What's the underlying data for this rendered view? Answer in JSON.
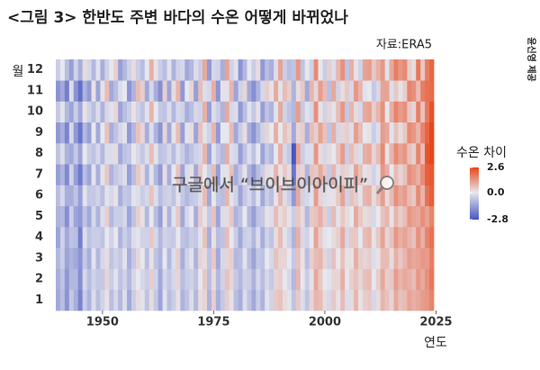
{
  "chart_data": {
    "type": "heatmap",
    "title": "<그림 3> 한반도 주변 바다의 수온 어떻게 바뀌었나",
    "source": "자료:ERA5",
    "credit": "윤신영 제공",
    "watermark": "구글에서 “브이브이아이피”",
    "xlabel": "연도",
    "ylabel": "월",
    "colorbar_title": "수온 차이",
    "colors": [
      "#4656c0",
      "#e7e7ee",
      "#e8461a"
    ],
    "zlim": [
      -2.8,
      2.6
    ],
    "zticks": [
      2.6,
      {
        "value": 0,
        "label": "0.0"
      },
      -2.8
    ],
    "xlim": [
      1939.5,
      2024.5
    ],
    "xticks": [
      1950,
      1975,
      2000,
      2025
    ],
    "x": [
      1940,
      1941,
      1942,
      1943,
      1944,
      1945,
      1946,
      1947,
      1948,
      1949,
      1950,
      1951,
      1952,
      1953,
      1954,
      1955,
      1956,
      1957,
      1958,
      1959,
      1960,
      1961,
      1962,
      1963,
      1964,
      1965,
      1966,
      1967,
      1968,
      1969,
      1970,
      1971,
      1972,
      1973,
      1974,
      1975,
      1976,
      1977,
      1978,
      1979,
      1980,
      1981,
      1982,
      1983,
      1984,
      1985,
      1986,
      1987,
      1988,
      1989,
      1990,
      1991,
      1992,
      1993,
      1994,
      1995,
      1996,
      1997,
      1998,
      1999,
      2000,
      2001,
      2002,
      2003,
      2004,
      2005,
      2006,
      2007,
      2008,
      2009,
      2010,
      2011,
      2012,
      2013,
      2014,
      2015,
      2016,
      2017,
      2018,
      2019,
      2020,
      2021,
      2022,
      2023,
      2024
    ],
    "y": [
      "1",
      "2",
      "3",
      "4",
      "5",
      "6",
      "7",
      "8",
      "9",
      "10",
      "11",
      "12"
    ],
    "z": [
      [
        -1.2,
        -0.8,
        -1.6,
        -0.6,
        -1.1,
        -1.9,
        -0.5,
        -1.0,
        -0.2,
        -0.8,
        -0.4,
        0.1,
        -0.8,
        -0.3,
        -0.9,
        -0.2,
        -1.2,
        -0.5,
        0.2,
        -0.1,
        -0.7,
        0.2,
        -0.6,
        -1.3,
        -0.1,
        -0.8,
        -0.5,
        0.1,
        -1.0,
        -0.7,
        -0.2,
        -0.9,
        0.2,
        0.3,
        -1.0,
        0.4,
        -1.1,
        -0.6,
        0.4,
        0.1,
        -0.8,
        -1.1,
        -0.2,
        -0.7,
        -1.2,
        -0.5,
        -1.0,
        -0.1,
        -0.4,
        0.5,
        0.6,
        0.2,
        -0.1,
        -0.7,
        0.5,
        -0.2,
        -0.7,
        0.3,
        0.8,
        0.7,
        0.2,
        -0.3,
        0.5,
        0.1,
        0.7,
        -0.2,
        0.2,
        0.8,
        0.1,
        0.4,
        0.5,
        -0.3,
        0.2,
        0.8,
        0.6,
        0.3,
        1.0,
        0.6,
        0.7,
        1.1,
        0.9,
        1.0,
        1.2,
        1.3,
        1.6
      ],
      [
        -1.1,
        -0.7,
        -1.5,
        -0.9,
        -0.9,
        -1.7,
        -0.3,
        -0.8,
        -0.4,
        -0.6,
        -0.6,
        0.3,
        -0.5,
        -0.1,
        -0.7,
        -0.4,
        -0.9,
        -0.3,
        0.0,
        -0.3,
        -0.5,
        0.4,
        -0.4,
        -1.2,
        -0.3,
        -0.6,
        -0.3,
        0.3,
        -0.8,
        -0.5,
        -0.4,
        -0.7,
        0.0,
        0.5,
        -0.8,
        0.2,
        -0.9,
        -0.4,
        0.6,
        0.3,
        -0.6,
        -0.9,
        -0.4,
        -0.5,
        -1.0,
        -0.3,
        -0.8,
        -0.3,
        -0.6,
        0.3,
        0.4,
        0.0,
        -0.3,
        -0.9,
        0.8,
        0.0,
        -0.5,
        0.1,
        1.0,
        0.5,
        0.0,
        -0.1,
        0.3,
        0.3,
        0.9,
        0.0,
        0.4,
        0.6,
        0.3,
        0.6,
        0.7,
        0.0,
        0.4,
        1.0,
        0.4,
        0.5,
        1.2,
        0.8,
        1.0,
        0.9,
        0.7,
        1.3,
        1.0,
        1.4,
        1.8
      ],
      [
        -0.9,
        -0.5,
        -1.3,
        -1.0,
        -1.2,
        -1.6,
        -0.6,
        -1.1,
        -0.1,
        -0.9,
        -0.3,
        0.2,
        -0.7,
        -0.4,
        -0.6,
        -0.1,
        -1.1,
        -0.6,
        0.3,
        0.0,
        -0.8,
        0.1,
        -0.7,
        -1.0,
        0.0,
        -0.9,
        -0.2,
        0.4,
        -1.1,
        -0.4,
        -0.1,
        -1.0,
        0.3,
        0.2,
        -0.7,
        0.5,
        -1.2,
        -0.3,
        0.3,
        0.4,
        -0.9,
        -0.8,
        -0.1,
        -0.8,
        -1.3,
        -0.6,
        -0.7,
        0.0,
        -0.3,
        0.6,
        0.3,
        0.3,
        0.0,
        -0.6,
        0.6,
        0.1,
        -0.8,
        0.4,
        0.7,
        0.8,
        0.3,
        -0.4,
        0.6,
        0.0,
        0.6,
        0.1,
        0.1,
        0.9,
        0.4,
        0.3,
        0.4,
        -0.2,
        0.1,
        0.7,
        0.7,
        0.2,
        0.9,
        0.5,
        0.8,
        1.2,
        1.0,
        1.1,
        1.3,
        1.2,
        1.7
      ],
      [
        -1.3,
        -0.4,
        -1.2,
        -0.7,
        -0.8,
        -2.0,
        -0.2,
        -0.7,
        -0.5,
        -0.5,
        -0.7,
        0.0,
        -0.4,
        0.0,
        -1.0,
        -0.5,
        -0.8,
        -0.2,
        -0.1,
        -0.4,
        -0.4,
        0.5,
        -0.3,
        -0.9,
        -0.4,
        -0.5,
        -0.6,
        0.0,
        -0.7,
        -0.8,
        -0.5,
        -0.6,
        -0.1,
        0.6,
        -1.1,
        0.1,
        -0.8,
        -0.7,
        0.7,
        0.0,
        -0.5,
        -1.2,
        -0.5,
        -0.4,
        -0.9,
        -0.2,
        -1.1,
        -0.4,
        -0.7,
        0.2,
        0.7,
        -0.1,
        -0.4,
        -1.0,
        0.9,
        -0.3,
        -0.4,
        0.0,
        1.1,
        0.4,
        -0.1,
        0.0,
        0.2,
        0.4,
        1.0,
        -0.3,
        0.5,
        0.5,
        0.0,
        0.7,
        0.8,
        0.1,
        0.5,
        1.1,
        0.3,
        0.6,
        1.3,
        0.9,
        1.1,
        0.8,
        0.6,
        1.4,
        0.9,
        1.6,
        1.9
      ],
      [
        -1.0,
        -0.9,
        -1.7,
        -0.5,
        -1.3,
        -1.5,
        -0.7,
        -1.2,
        -0.3,
        -1.0,
        -0.2,
        0.4,
        -0.9,
        -0.5,
        -0.5,
        -0.3,
        -1.3,
        -0.7,
        0.4,
        0.1,
        -0.9,
        0.0,
        -0.8,
        -1.4,
        0.1,
        -1.0,
        -0.1,
        0.5,
        -1.2,
        -0.3,
        0.0,
        -1.1,
        0.4,
        0.1,
        -0.6,
        0.6,
        -1.3,
        -0.2,
        0.2,
        0.5,
        -1.0,
        -0.7,
        0.0,
        -0.9,
        -1.4,
        -0.7,
        -0.6,
        0.1,
        -0.2,
        0.7,
        0.2,
        0.4,
        0.1,
        -0.5,
        0.5,
        0.2,
        -0.9,
        0.5,
        0.6,
        0.9,
        0.4,
        -0.5,
        0.7,
        -0.1,
        0.5,
        0.2,
        0.0,
        1.0,
        0.5,
        0.2,
        0.3,
        -0.3,
        0.0,
        0.6,
        0.8,
        0.1,
        0.8,
        0.4,
        0.7,
        1.3,
        1.1,
        1.0,
        1.4,
        1.1,
        1.6
      ],
      [
        -0.8,
        -0.3,
        -1.1,
        -1.1,
        -0.7,
        -1.4,
        -0.1,
        -0.6,
        -0.6,
        -0.4,
        -0.8,
        -0.1,
        -0.3,
        0.1,
        -1.1,
        -0.6,
        -0.7,
        -0.1,
        -0.2,
        -0.5,
        -0.3,
        0.6,
        -0.2,
        -0.8,
        -0.5,
        -0.4,
        -0.7,
        -0.1,
        -0.6,
        -0.9,
        -0.6,
        -0.5,
        -0.2,
        0.7,
        -1.2,
        0.0,
        -0.7,
        -0.8,
        0.8,
        -0.1,
        -0.4,
        -1.3,
        -0.6,
        -0.3,
        -0.8,
        -0.1,
        -1.2,
        -0.5,
        -0.8,
        0.1,
        0.8,
        -0.2,
        -0.5,
        -1.5,
        1.0,
        -0.4,
        -0.3,
        -0.1,
        1.2,
        0.3,
        -0.2,
        0.1,
        0.1,
        0.5,
        1.1,
        -0.4,
        0.6,
        0.4,
        -0.1,
        0.8,
        0.9,
        0.2,
        0.6,
        1.2,
        0.2,
        0.7,
        1.4,
        1.0,
        1.2,
        0.7,
        0.5,
        1.5,
        0.8,
        1.9,
        2.2
      ],
      [
        -1.4,
        -1.0,
        -1.8,
        -0.4,
        -1.4,
        -2.1,
        -0.8,
        -1.3,
        -0.1,
        -1.1,
        -0.1,
        0.5,
        -1.0,
        -0.6,
        -0.4,
        -0.2,
        -1.4,
        -0.8,
        0.5,
        0.2,
        -1.0,
        -0.1,
        -0.9,
        -1.5,
        0.2,
        -1.1,
        0.0,
        0.6,
        -1.3,
        -0.2,
        0.1,
        -1.2,
        0.5,
        0.0,
        -0.5,
        0.7,
        -1.4,
        -0.1,
        0.1,
        0.6,
        -1.1,
        -0.6,
        0.1,
        -1.0,
        -1.5,
        -0.8,
        -0.5,
        0.2,
        -0.1,
        0.8,
        0.1,
        0.5,
        0.2,
        -2.2,
        0.4,
        0.3,
        -1.0,
        0.6,
        0.5,
        1.0,
        0.5,
        -0.6,
        0.8,
        -0.2,
        0.4,
        0.3,
        -0.1,
        1.1,
        0.6,
        0.1,
        0.2,
        -0.4,
        -0.1,
        1.3,
        0.9,
        0.0,
        0.7,
        0.3,
        0.6,
        1.4,
        1.2,
        0.9,
        1.5,
        2.2,
        2.3
      ],
      [
        -0.7,
        -0.2,
        -1.0,
        -1.2,
        -0.6,
        -1.3,
        0.0,
        -0.5,
        -0.7,
        -0.3,
        -0.9,
        -0.2,
        -0.2,
        0.2,
        -1.2,
        -0.7,
        -0.6,
        0.0,
        -0.3,
        -0.6,
        -0.2,
        0.7,
        -0.1,
        -0.7,
        -0.6,
        -0.3,
        -0.8,
        -0.2,
        -0.5,
        -1.0,
        -0.7,
        -0.4,
        -0.3,
        0.8,
        -1.3,
        -0.1,
        -0.6,
        -0.9,
        0.9,
        -0.2,
        -0.3,
        -1.4,
        -0.7,
        -0.2,
        -0.7,
        0.0,
        -1.3,
        -0.6,
        -0.9,
        0.0,
        0.9,
        -0.3,
        -0.6,
        -2.8,
        1.1,
        -0.5,
        -0.2,
        -0.2,
        1.3,
        0.2,
        -0.3,
        0.2,
        0.0,
        0.6,
        1.2,
        -0.5,
        0.7,
        0.3,
        -0.2,
        0.9,
        1.0,
        0.3,
        0.7,
        1.5,
        0.1,
        0.8,
        1.5,
        1.1,
        1.3,
        0.6,
        0.4,
        1.6,
        0.7,
        2.4,
        2.6
      ],
      [
        -1.5,
        -1.1,
        -1.9,
        -0.3,
        -1.5,
        -2.2,
        -0.9,
        -1.4,
        0.0,
        -1.2,
        0.0,
        0.6,
        -1.1,
        -0.7,
        -0.3,
        -0.1,
        -1.5,
        -0.9,
        0.6,
        0.3,
        -1.1,
        -0.2,
        -1.0,
        -1.6,
        0.3,
        -1.2,
        0.1,
        0.7,
        -1.4,
        -0.1,
        0.2,
        -1.3,
        0.6,
        -0.1,
        -0.4,
        0.8,
        -1.5,
        0.0,
        0.0,
        0.7,
        -1.2,
        -0.5,
        0.2,
        -1.1,
        -1.6,
        -0.9,
        -0.4,
        0.3,
        0.0,
        0.9,
        0.0,
        0.6,
        0.3,
        -1.2,
        0.3,
        0.4,
        -1.1,
        0.7,
        0.4,
        1.1,
        0.6,
        -0.7,
        0.9,
        -0.3,
        0.3,
        0.4,
        -0.2,
        1.2,
        0.7,
        0.0,
        0.1,
        -0.5,
        -0.2,
        1.2,
        1.0,
        -0.1,
        0.6,
        0.2,
        0.5,
        1.5,
        1.3,
        0.8,
        1.6,
        2.1,
        2.6
      ],
      [
        -0.6,
        -0.1,
        -0.9,
        -1.3,
        -0.5,
        -1.2,
        0.1,
        -0.4,
        -0.8,
        -0.2,
        -1.0,
        -0.3,
        -0.1,
        0.3,
        -1.3,
        -0.8,
        -0.5,
        0.1,
        -0.4,
        -0.7,
        -0.1,
        0.8,
        0.0,
        -0.6,
        -0.7,
        -0.2,
        -0.9,
        -0.3,
        -0.4,
        -1.1,
        -0.8,
        -0.3,
        -0.4,
        0.9,
        -1.4,
        -0.2,
        -0.5,
        -1.0,
        1.0,
        -0.3,
        -0.2,
        -1.5,
        -0.8,
        -0.1,
        -0.6,
        0.1,
        -1.4,
        -0.7,
        -1.0,
        -0.1,
        1.0,
        -0.4,
        -0.7,
        -0.9,
        1.2,
        -0.6,
        -0.1,
        -0.3,
        1.4,
        0.1,
        -0.4,
        0.3,
        -0.1,
        0.7,
        1.3,
        -0.6,
        0.8,
        0.2,
        -0.3,
        1.0,
        1.1,
        0.4,
        0.8,
        1.4,
        0.0,
        0.9,
        1.6,
        1.2,
        1.4,
        0.5,
        0.3,
        1.7,
        0.6,
        1.8,
        2.4
      ],
      [
        -1.6,
        -1.2,
        -2.0,
        -0.2,
        -1.6,
        -2.3,
        -1.0,
        -1.5,
        0.1,
        -1.3,
        0.1,
        0.7,
        -1.2,
        -0.8,
        -0.2,
        0.0,
        -1.6,
        -1.0,
        0.7,
        0.4,
        -1.2,
        -0.3,
        -1.1,
        -1.7,
        0.4,
        -1.3,
        0.2,
        0.8,
        -1.5,
        0.0,
        0.3,
        -1.4,
        0.7,
        -0.2,
        -0.3,
        0.9,
        -1.6,
        0.1,
        -0.1,
        0.8,
        -1.3,
        -0.4,
        0.3,
        -1.2,
        -1.7,
        -1.0,
        -0.3,
        0.4,
        0.1,
        1.0,
        -0.1,
        0.7,
        0.4,
        -1.0,
        0.2,
        0.5,
        -1.2,
        0.8,
        0.3,
        1.2,
        0.7,
        -0.8,
        1.0,
        -0.4,
        0.2,
        0.5,
        -0.3,
        1.3,
        0.8,
        -0.1,
        0.0,
        -0.6,
        -0.3,
        1.1,
        1.1,
        -0.2,
        0.5,
        0.1,
        0.4,
        1.6,
        1.4,
        0.7,
        1.7,
        1.9,
        2.0
      ],
      [
        -0.5,
        0.0,
        -0.8,
        -1.4,
        -0.4,
        -1.1,
        0.2,
        -0.3,
        -0.9,
        -0.1,
        -1.1,
        -0.4,
        0.0,
        0.4,
        -1.4,
        -0.9,
        -0.4,
        0.2,
        -0.5,
        -0.8,
        0.0,
        0.9,
        0.1,
        -0.5,
        -0.8,
        -0.1,
        -1.0,
        -0.4,
        -0.3,
        -1.2,
        -0.9,
        -0.2,
        -0.5,
        1.0,
        -1.5,
        -0.3,
        -0.4,
        -1.1,
        1.1,
        -0.4,
        -0.1,
        -1.6,
        -0.9,
        0.0,
        -0.5,
        0.2,
        -1.5,
        -0.8,
        -1.1,
        -0.2,
        1.1,
        -0.5,
        -0.8,
        -0.7,
        1.3,
        -0.7,
        0.0,
        -0.4,
        1.5,
        0.0,
        -0.5,
        0.4,
        -0.2,
        0.8,
        1.4,
        -0.7,
        0.9,
        0.1,
        -0.4,
        1.1,
        1.2,
        0.5,
        0.9,
        1.3,
        -0.1,
        1.0,
        1.7,
        1.3,
        1.5,
        0.4,
        0.2,
        1.8,
        0.5,
        1.7,
        2.1
      ]
    ]
  }
}
